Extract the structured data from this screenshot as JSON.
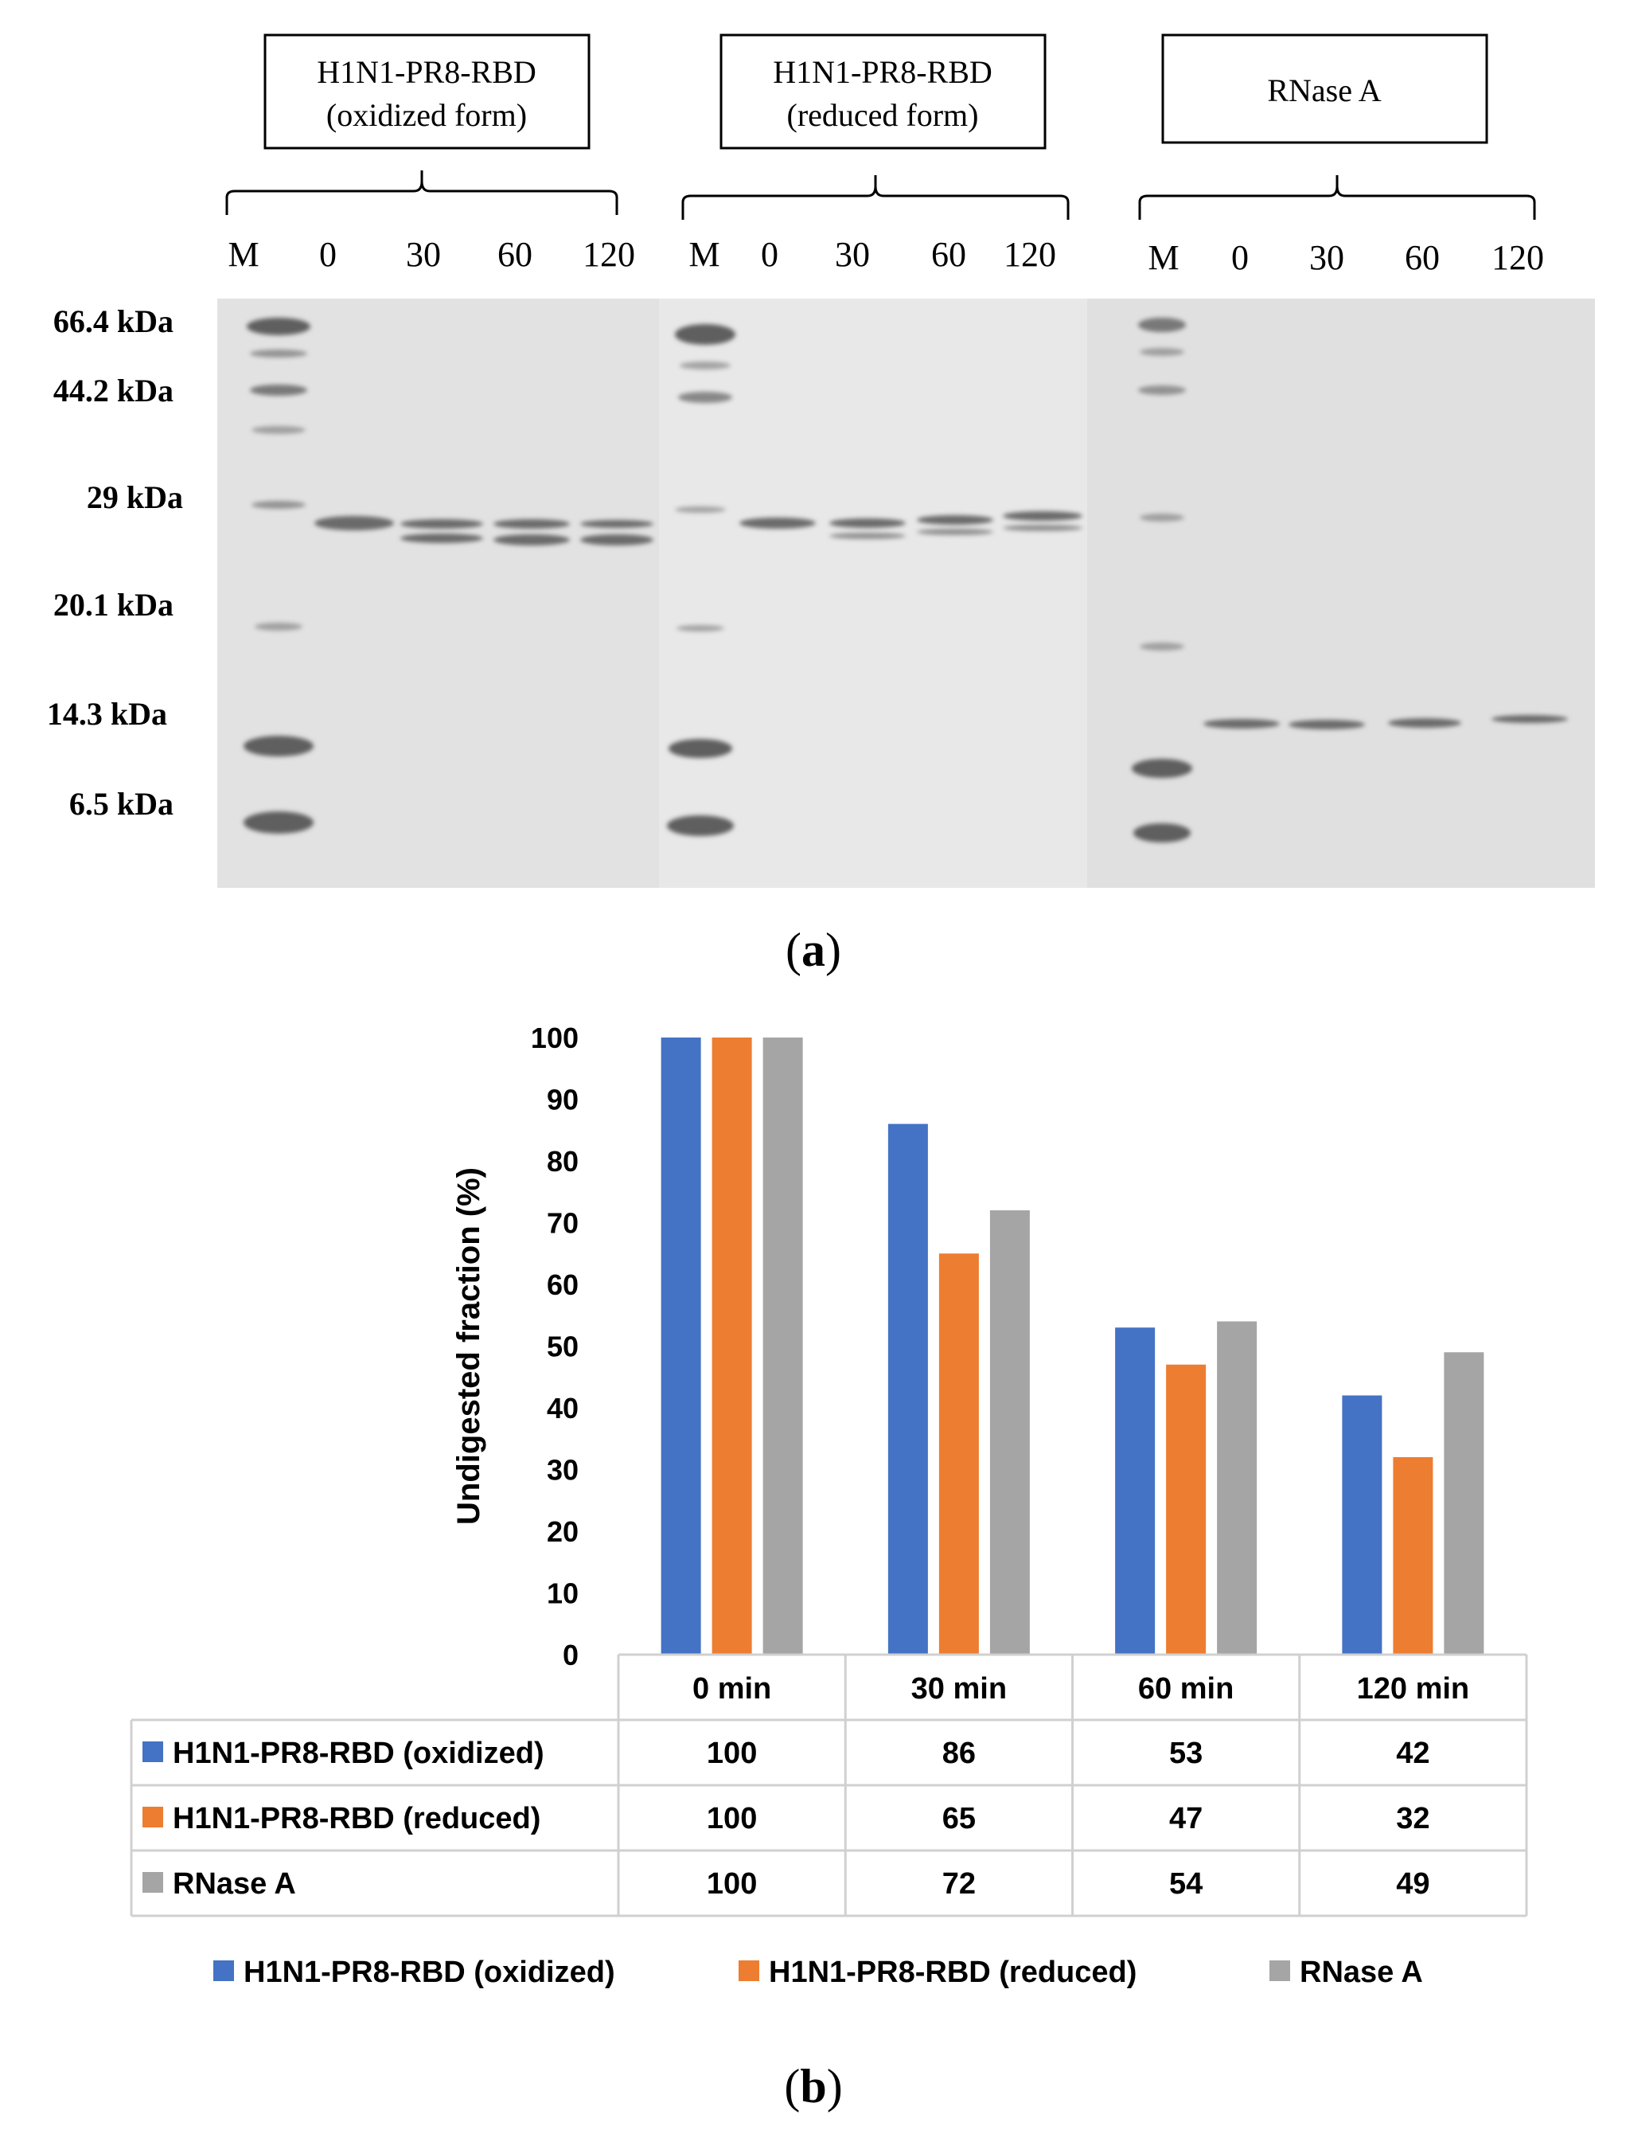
{
  "panel_a": {
    "label_open": "(",
    "label_letter": "a",
    "label_close": ")",
    "lane_headers": [
      "M",
      "0",
      "30",
      "60",
      "120"
    ],
    "marker_labels": [
      "66.4 kDa",
      "44.2 kDa",
      "29 kDa",
      "20.1 kDa",
      "14.3 kDa",
      "6.5 kDa"
    ],
    "gels": [
      {
        "box_lines": [
          "H1N1-PR8-RBD",
          "(oxidized form)"
        ]
      },
      {
        "box_lines": [
          "H1N1-PR8-RBD",
          "(reduced form)"
        ]
      },
      {
        "box_lines": [
          "RNase A"
        ]
      }
    ]
  },
  "panel_b": {
    "label_open": "(",
    "label_letter": "b",
    "label_close": ")"
  },
  "colors": {
    "oxidized": "#4472C4",
    "reduced": "#ED7D31",
    "rnase": "#A5A5A5",
    "gel_bg": "#e3e3e3",
    "band": "#6b6b6b"
  },
  "chart_data": {
    "type": "bar",
    "categories": [
      "0 min",
      "30 min",
      "60 min",
      "120 min"
    ],
    "series": [
      {
        "name": "H1N1-PR8-RBD (oxidized)",
        "values": [
          100,
          86,
          53,
          42
        ]
      },
      {
        "name": "H1N1-PR8-RBD (reduced)",
        "values": [
          100,
          65,
          47,
          32
        ]
      },
      {
        "name": "RNase A",
        "values": [
          100,
          72,
          54,
          49
        ]
      }
    ],
    "ylabel": "Undigested fraction (%)",
    "ylim": [
      0,
      100
    ],
    "yticks": [
      "0",
      "10",
      "20",
      "30",
      "40",
      "50",
      "60",
      "70",
      "80",
      "90",
      "100"
    ],
    "grid": false,
    "legend_position": "bottom",
    "data_table": true
  }
}
